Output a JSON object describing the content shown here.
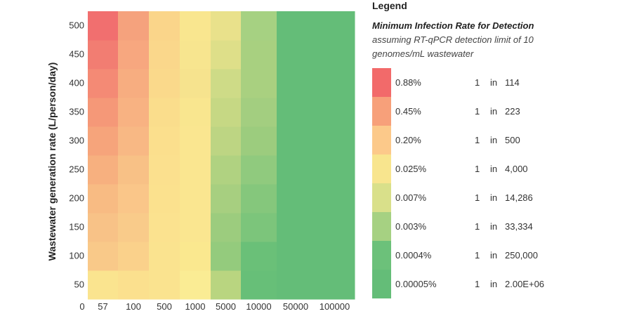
{
  "chart_data": {
    "type": "heatmap",
    "ylabel": "Wastewater generation rate (L/person/day)",
    "xlabel": "",
    "x_categories": [
      "57",
      "100",
      "500",
      "1000",
      "5000",
      "10000",
      "50000",
      "100000"
    ],
    "x_origin_label": "0",
    "y_categories": [
      "50",
      "100",
      "150",
      "200",
      "250",
      "300",
      "350",
      "400",
      "450",
      "500"
    ],
    "grid": false,
    "legend_position": "right",
    "levels": [
      {
        "pct": "0.88%",
        "one": "1",
        "in": "in",
        "denominator": "114",
        "color": "#f26a6a"
      },
      {
        "pct": "0.45%",
        "one": "1",
        "in": "in",
        "denominator": "223",
        "color": "#f7a07a"
      },
      {
        "pct": "0.20%",
        "one": "1",
        "in": "in",
        "denominator": "500",
        "color": "#fcc98a"
      },
      {
        "pct": "0.025%",
        "one": "1",
        "in": "in",
        "denominator": "4,000",
        "color": "#f8e58e"
      },
      {
        "pct": "0.007%",
        "one": "1",
        "in": "in",
        "denominator": "14,286",
        "color": "#d9e08a"
      },
      {
        "pct": "0.003%",
        "one": "1",
        "in": "in",
        "denominator": "33,334",
        "color": "#a6d182"
      },
      {
        "pct": "0.0004%",
        "one": "1",
        "in": "in",
        "denominator": "250,000",
        "color": "#6cc17a"
      },
      {
        "pct": "0.00005%",
        "one": "1",
        "in": "in",
        "denominator": "2.00E+06",
        "color": "#64bd78"
      }
    ],
    "cell_colors": [
      [
        "#fae48f",
        "#fbe08e",
        "#fae38f",
        "#faec94",
        "#b9d580",
        "#67bf78",
        "#64bd78",
        "#64bd78"
      ],
      [
        "#f9c989",
        "#fad18b",
        "#fae38f",
        "#fae88f",
        "#94cb7d",
        "#6ac078",
        "#64bd78",
        "#64bd78"
      ],
      [
        "#f8c287",
        "#f9cb8a",
        "#fbe28f",
        "#fae690",
        "#9ccc7e",
        "#7cc57b",
        "#64bd78",
        "#64bd78"
      ],
      [
        "#f8bb83",
        "#fac689",
        "#fbe18e",
        "#fae690",
        "#a7cf80",
        "#85c77c",
        "#64bd78",
        "#64bd78"
      ],
      [
        "#f7b07f",
        "#f8c186",
        "#fbe08e",
        "#fae690",
        "#b0d281",
        "#90ca7e",
        "#64bd78",
        "#64bd78"
      ],
      [
        "#f6a47b",
        "#f8b884",
        "#fbdf8d",
        "#fae690",
        "#bdd583",
        "#9ccc7e",
        "#64bd78",
        "#64bd78"
      ],
      [
        "#f59878",
        "#f8b282",
        "#fadd8c",
        "#f9e68f",
        "#c6d884",
        "#a3ce80",
        "#64bd78",
        "#64bd78"
      ],
      [
        "#f48a75",
        "#f7ad80",
        "#fad98b",
        "#f6e38e",
        "#cedb87",
        "#a9d080",
        "#64bd78",
        "#64bd78"
      ],
      [
        "#f27d72",
        "#f7a77f",
        "#fad78b",
        "#f7e58f",
        "#dedf89",
        "#a8d080",
        "#64bd78",
        "#64bd78"
      ],
      [
        "#f16f6f",
        "#f5a27d",
        "#fad58a",
        "#f9e68f",
        "#e9e18b",
        "#a6d182",
        "#64bd78",
        "#64bd78"
      ]
    ]
  },
  "legend": {
    "title": "Legend",
    "subtitle": "Minimum Infection Rate for Detection",
    "note": "assuming RT-qPCR detection limit of 10 genomes/mL wastewater"
  }
}
